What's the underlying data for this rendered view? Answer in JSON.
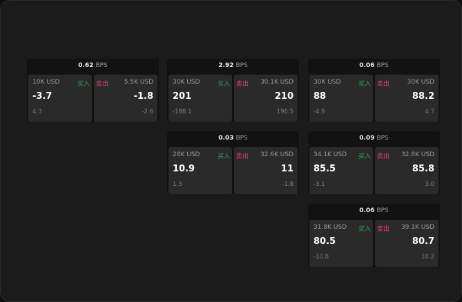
{
  "unit": "BPS",
  "buy_label": "买入",
  "sell_label": "卖出",
  "colors": {
    "buy": "#2fa35a",
    "sell": "#d8456b"
  },
  "widgets": [
    {
      "spread": "0.62",
      "buy": {
        "size": "10K USD",
        "price": "-3.7",
        "change": "4.3"
      },
      "sell": {
        "size": "5.5K USD",
        "price": "-1.8",
        "change": "-2.6"
      }
    },
    {
      "spread": "2.92",
      "buy": {
        "size": "30K USD",
        "price": "201",
        "change": "-188.1"
      },
      "sell": {
        "size": "30.1K USD",
        "price": "210",
        "change": "196.5"
      }
    },
    {
      "spread": "0.06",
      "buy": {
        "size": "30K USD",
        "price": "88",
        "change": "-4.9"
      },
      "sell": {
        "size": "30K USD",
        "price": "88.2",
        "change": "4.7"
      }
    },
    {
      "spread": "0.03",
      "buy": {
        "size": "28K USD",
        "price": "10.9",
        "change": "1.3"
      },
      "sell": {
        "size": "32.6K USD",
        "price": "11",
        "change": "-1.8"
      }
    },
    {
      "spread": "0.09",
      "buy": {
        "size": "34.1K USD",
        "price": "85.5",
        "change": "-3.1"
      },
      "sell": {
        "size": "32.8K USD",
        "price": "85.8",
        "change": "3.0"
      }
    },
    {
      "spread": "0.06",
      "buy": {
        "size": "31.8K USD",
        "price": "80.5",
        "change": "-10.8"
      },
      "sell": {
        "size": "39.1K USD",
        "price": "80.7",
        "change": "10.2"
      }
    }
  ]
}
